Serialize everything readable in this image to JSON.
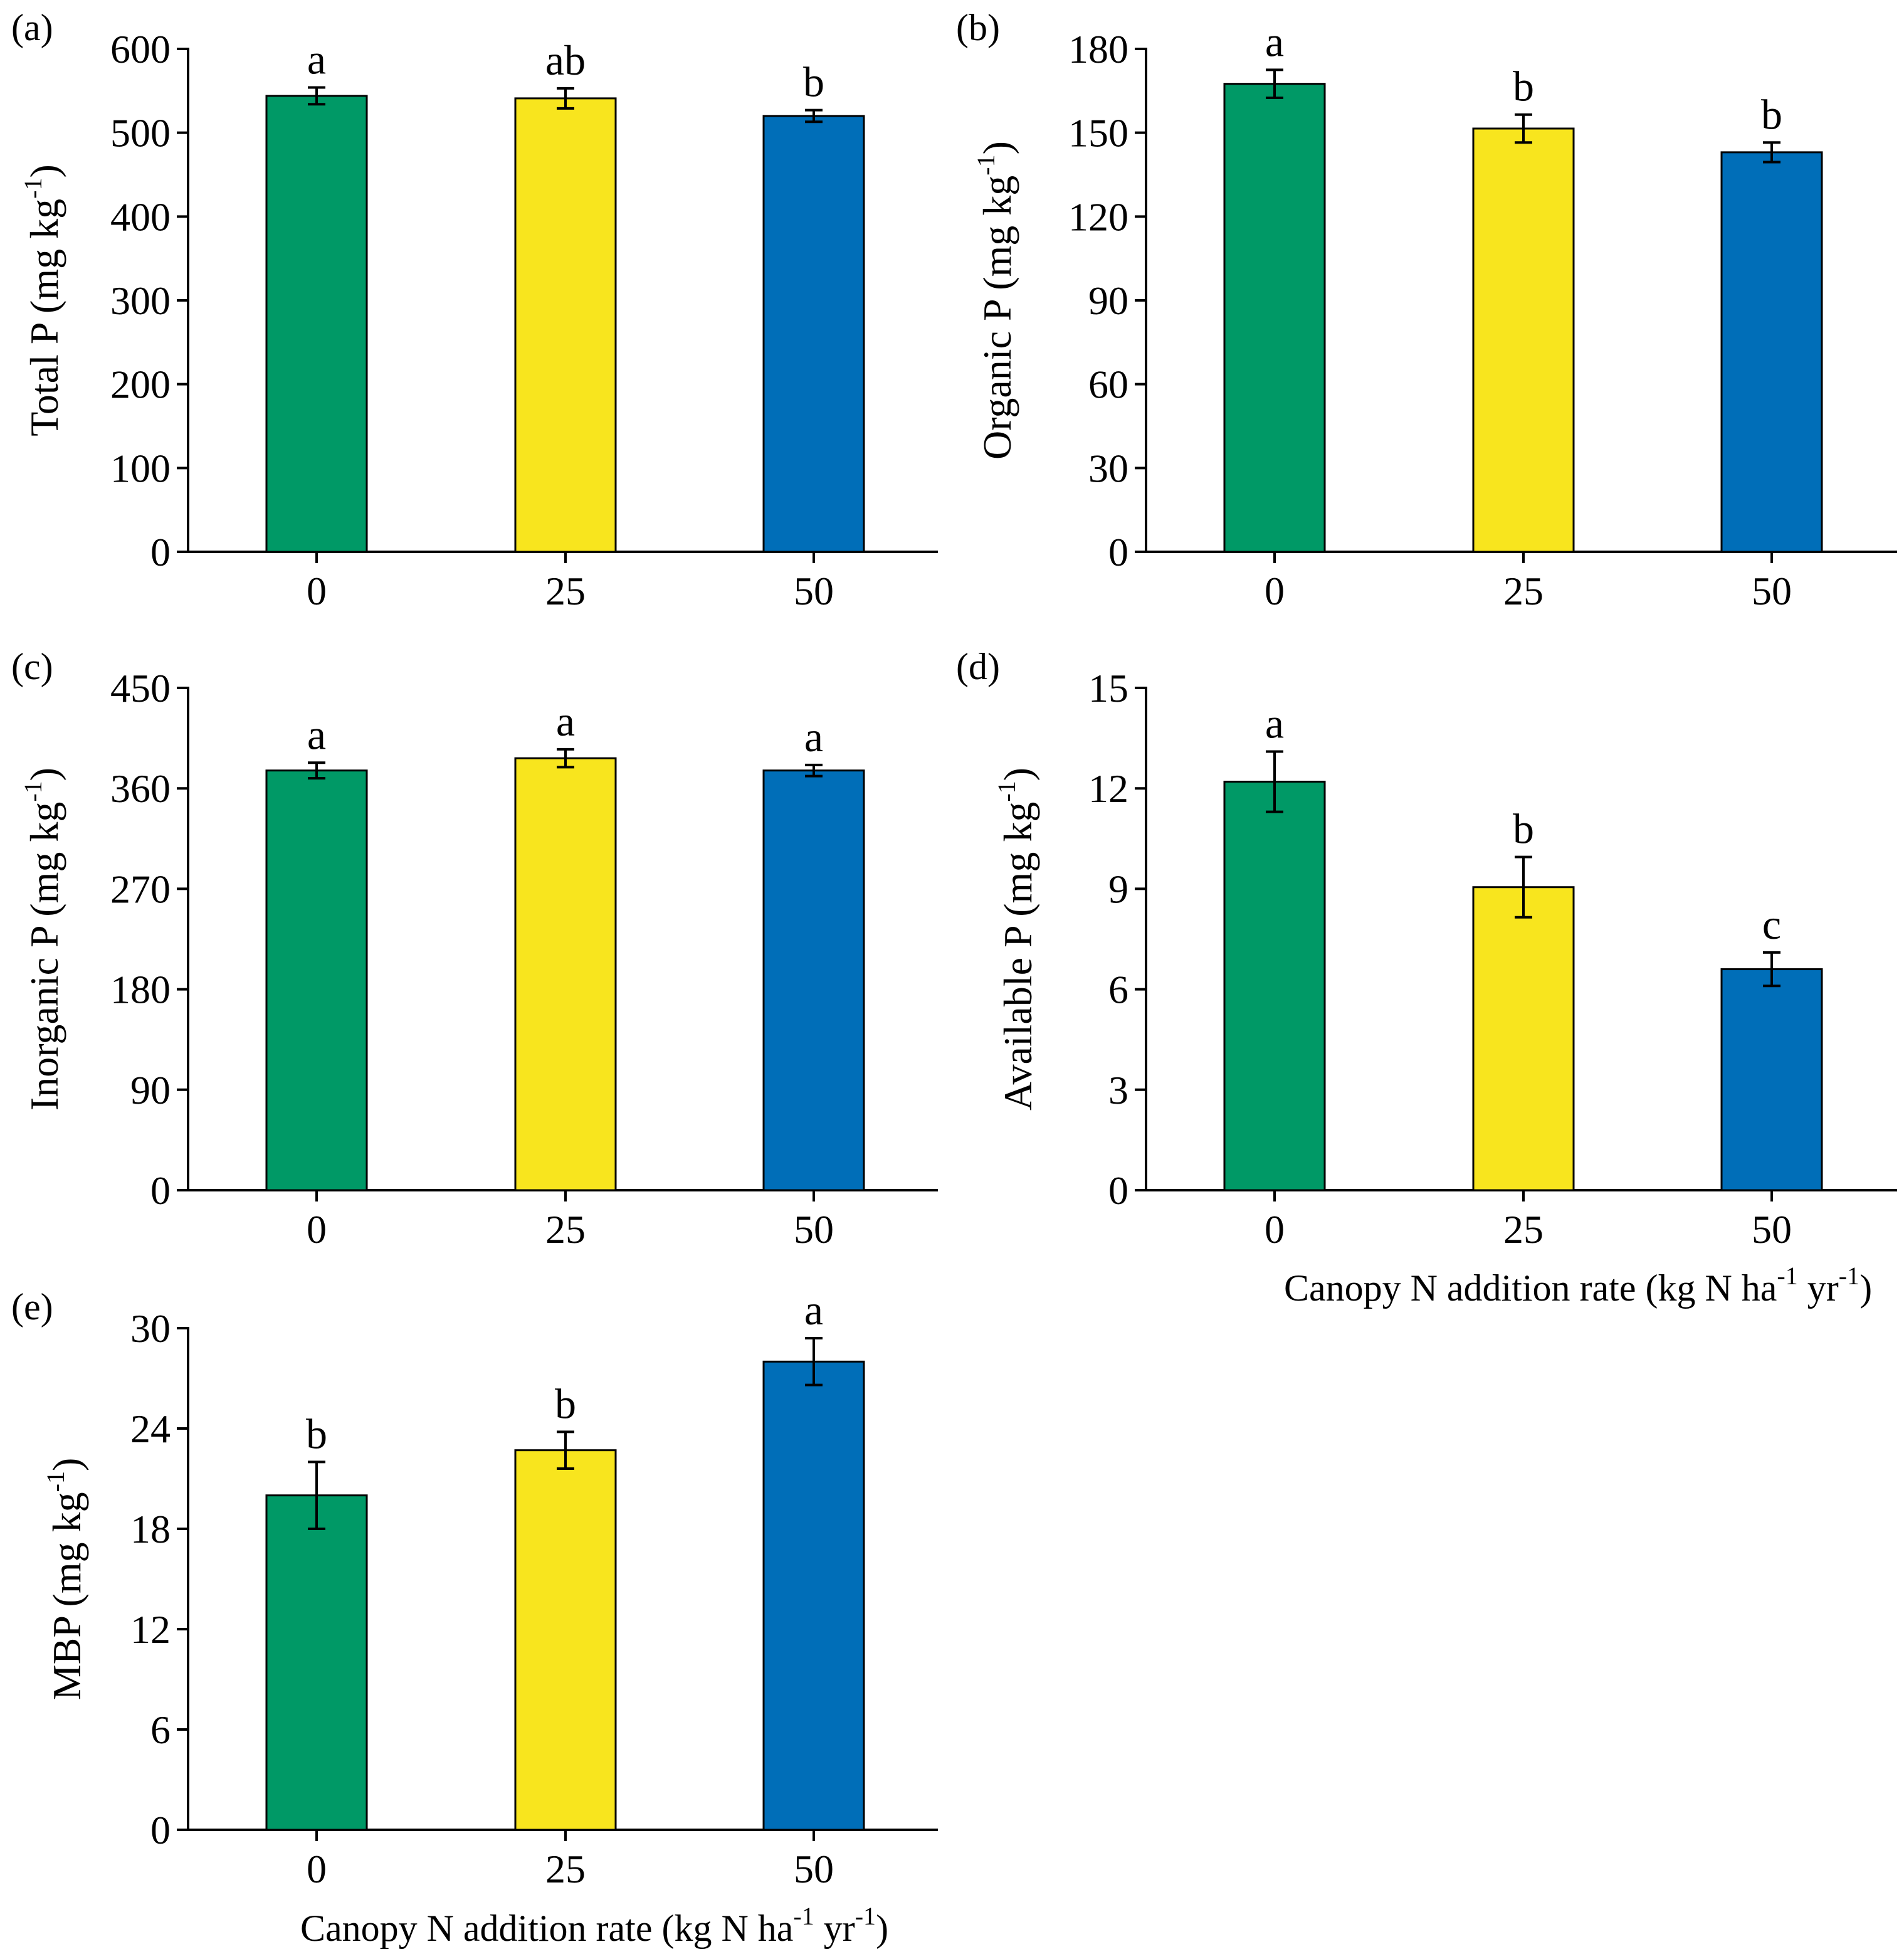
{
  "chart_data": [
    {
      "panel": "(a)",
      "type": "bar",
      "categories": [
        "0",
        "25",
        "50"
      ],
      "values": [
        544,
        541,
        520
      ],
      "errors": [
        10,
        12,
        7
      ],
      "significance": [
        "a",
        "ab",
        "b"
      ],
      "ylabel": {
        "main": "Total P (mg kg",
        "sup": "-1",
        "close": ")"
      },
      "xlabel": null,
      "ylim": [
        0,
        600
      ],
      "yticks": [
        0,
        100,
        200,
        300,
        400,
        500,
        600
      ]
    },
    {
      "panel": "(b)",
      "type": "bar",
      "categories": [
        "0",
        "25",
        "50"
      ],
      "values": [
        167.5,
        151.5,
        143
      ],
      "errors": [
        5,
        5,
        3.5
      ],
      "significance": [
        "a",
        "b",
        "b"
      ],
      "ylabel": {
        "main": "Organic P (mg kg",
        "sup": "-1",
        "close": ")"
      },
      "xlabel": null,
      "ylim": [
        0,
        180
      ],
      "yticks": [
        0,
        30,
        60,
        90,
        120,
        150,
        180
      ]
    },
    {
      "panel": "(c)",
      "type": "bar",
      "categories": [
        "0",
        "25",
        "50"
      ],
      "values": [
        376,
        387,
        376
      ],
      "errors": [
        7,
        8,
        5
      ],
      "significance": [
        "a",
        "a",
        "a"
      ],
      "ylabel": {
        "main": "Inorganic P (mg kg",
        "sup": "-1",
        "close": ")"
      },
      "xlabel": null,
      "ylim": [
        0,
        450
      ],
      "yticks": [
        0,
        90,
        180,
        270,
        360,
        450
      ]
    },
    {
      "panel": "(d)",
      "type": "bar",
      "categories": [
        "0",
        "25",
        "50"
      ],
      "values": [
        12.2,
        9.05,
        6.6
      ],
      "errors": [
        0.9,
        0.9,
        0.5
      ],
      "significance": [
        "a",
        "b",
        "c"
      ],
      "ylabel": {
        "main": "Available P (mg kg",
        "sup": "-1",
        "close": ")"
      },
      "xlabel": {
        "main": "Canopy N addition rate (kg N ha",
        "sup1": "-1",
        "mid": " yr",
        "sup2": "-1",
        "close": ")"
      },
      "ylim": [
        0,
        15
      ],
      "yticks": [
        0,
        3,
        6,
        9,
        12,
        15
      ]
    },
    {
      "panel": "(e)",
      "type": "bar",
      "categories": [
        "0",
        "25",
        "50"
      ],
      "values": [
        20,
        22.7,
        28
      ],
      "errors": [
        2,
        1.1,
        1.4
      ],
      "significance": [
        "b",
        "b",
        "a"
      ],
      "ylabel": {
        "main": "MBP (mg kg",
        "sup": "-1",
        "close": ")"
      },
      "xlabel": {
        "main": "Canopy N addition rate (kg N ha",
        "sup1": "-1",
        "mid": " yr",
        "sup2": "-1",
        "close": ")"
      },
      "ylim": [
        0,
        30
      ],
      "yticks": [
        0,
        6,
        12,
        18,
        24,
        30
      ]
    }
  ],
  "colors": {
    "bars": [
      "#009966",
      "#F8E51E",
      "#006EB8"
    ],
    "axis": "#000000"
  }
}
